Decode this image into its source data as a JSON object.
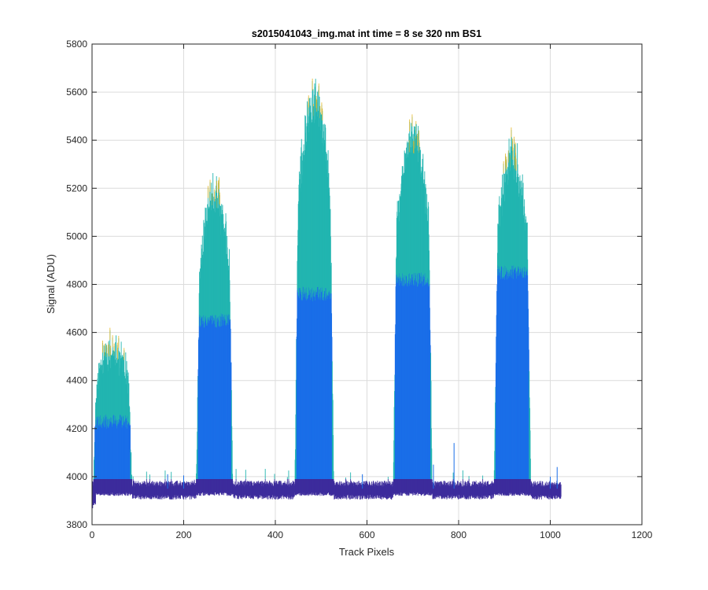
{
  "chart_data": {
    "type": "line",
    "title": "s2015041043_img.mat int time = 8 se  320 nm BS1",
    "xlabel": "Track Pixels",
    "ylabel": "Signal (ADU)",
    "xlim": [
      0,
      1200
    ],
    "ylim": [
      3800,
      5800
    ],
    "xticks": [
      "0",
      "200",
      "400",
      "600",
      "800",
      "1000",
      "1200"
    ],
    "yticks": [
      "3800",
      "4000",
      "4200",
      "4400",
      "4600",
      "4800",
      "5000",
      "5200",
      "5400",
      "5600",
      "5800"
    ],
    "grid": true,
    "baseline_level": 3950,
    "data_range_x": [
      0,
      1024
    ],
    "peaks": [
      {
        "x_start": 10,
        "x_end": 80,
        "max_signal": 4640,
        "upper_envelope_level": 4560,
        "core_level": 4230
      },
      {
        "x_start": 235,
        "x_end": 300,
        "max_signal": 5300,
        "upper_envelope_level": 5180,
        "core_level": 4650
      },
      {
        "x_start": 450,
        "x_end": 520,
        "max_signal": 5710,
        "upper_envelope_level": 5560,
        "core_level": 4760
      },
      {
        "x_start": 665,
        "x_end": 735,
        "max_signal": 5530,
        "upper_envelope_level": 5420,
        "core_level": 4820
      },
      {
        "x_start": 885,
        "x_end": 950,
        "max_signal": 5470,
        "upper_envelope_level": 5340,
        "core_level": 4850
      }
    ],
    "colors": {
      "low": "#3d2c9c",
      "mid": "#1a6ee8",
      "high": "#22b5b0",
      "peak": "#e6b82a"
    }
  }
}
